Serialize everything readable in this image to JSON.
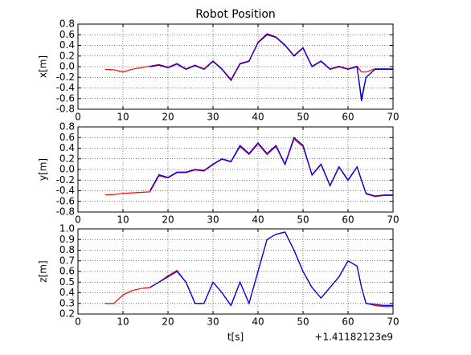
{
  "chart_data": [
    {
      "type": "line",
      "title": "Robot Position",
      "y_label": "x[m]",
      "x": [
        6,
        8,
        10,
        12,
        14,
        16,
        18,
        20,
        22,
        24,
        26,
        28,
        30,
        32,
        34,
        36,
        38,
        40,
        42,
        44,
        46,
        48,
        50,
        52,
        54,
        56,
        58,
        60,
        62,
        63,
        64,
        66,
        68,
        70
      ],
      "series": [
        {
          "color": "#000000",
          "values": [
            null,
            null,
            null,
            null,
            null,
            0.0,
            0.03,
            -0.02,
            0.05,
            -0.05,
            0.02,
            -0.05,
            0.1,
            -0.05,
            -0.25,
            0.05,
            0.1,
            0.45,
            0.6,
            0.55,
            0.4,
            0.2,
            0.35,
            0.0,
            0.1,
            -0.05,
            0.0,
            -0.05,
            0.0,
            -0.6,
            -0.2,
            -0.05,
            -0.05,
            -0.05
          ]
        },
        {
          "color": "#ff0000",
          "values": [
            -0.05,
            -0.06,
            -0.1,
            -0.05,
            -0.02,
            0.01,
            0.04,
            -0.01,
            0.06,
            -0.04,
            0.03,
            -0.04,
            0.11,
            -0.04,
            -0.24,
            0.06,
            0.11,
            0.46,
            0.62,
            0.56,
            0.41,
            0.21,
            0.36,
            0.01,
            0.11,
            -0.04,
            0.01,
            -0.04,
            0.01,
            -0.1,
            -0.1,
            -0.04,
            -0.04,
            -0.04
          ]
        },
        {
          "color": "#0000ff",
          "values": [
            null,
            null,
            null,
            null,
            null,
            0.0,
            0.03,
            -0.02,
            0.05,
            -0.05,
            0.02,
            -0.05,
            0.1,
            -0.05,
            -0.26,
            0.05,
            0.1,
            0.45,
            0.61,
            0.55,
            0.4,
            0.2,
            0.35,
            0.0,
            0.1,
            -0.05,
            0.0,
            -0.05,
            0.0,
            -0.65,
            -0.2,
            -0.05,
            -0.05,
            -0.05
          ]
        }
      ],
      "xlim": [
        0,
        70
      ],
      "xticks": [
        0,
        10,
        20,
        30,
        40,
        50,
        60,
        70
      ],
      "ylim": [
        -0.8,
        0.8
      ],
      "yticks": [
        0.8,
        0.6,
        0.4,
        0.2,
        {
          "value": 0,
          "label": "0.0"
        },
        -0.2,
        -0.4,
        -0.6,
        -0.8
      ],
      "grid": true
    },
    {
      "type": "line",
      "y_label": "y[m]",
      "x": [
        6,
        8,
        10,
        12,
        14,
        16,
        18,
        20,
        22,
        24,
        26,
        28,
        30,
        32,
        34,
        36,
        38,
        40,
        42,
        44,
        46,
        48,
        50,
        52,
        54,
        56,
        58,
        60,
        62,
        63,
        64,
        66,
        68,
        70
      ],
      "series": [
        {
          "color": "#000000",
          "values": [
            null,
            null,
            null,
            null,
            null,
            -0.4,
            -0.1,
            -0.15,
            -0.05,
            -0.05,
            0.0,
            -0.02,
            0.1,
            0.2,
            0.15,
            0.45,
            0.3,
            0.5,
            0.3,
            0.45,
            0.1,
            0.6,
            0.45,
            -0.1,
            0.1,
            -0.3,
            0.05,
            -0.2,
            0.05,
            -0.2,
            -0.45,
            -0.5,
            -0.48,
            -0.48
          ]
        },
        {
          "color": "#ff0000",
          "values": [
            -0.48,
            -0.47,
            -0.45,
            -0.44,
            -0.43,
            -0.42,
            -0.12,
            -0.16,
            -0.06,
            -0.06,
            -0.01,
            -0.03,
            0.09,
            0.19,
            0.14,
            0.43,
            0.28,
            0.48,
            0.28,
            0.43,
            0.09,
            0.57,
            0.43,
            -0.11,
            0.09,
            -0.31,
            0.04,
            -0.21,
            0.04,
            -0.21,
            -0.46,
            -0.51,
            -0.49,
            -0.49
          ]
        },
        {
          "color": "#0000ff",
          "values": [
            null,
            null,
            null,
            null,
            null,
            -0.4,
            -0.1,
            -0.15,
            -0.05,
            -0.05,
            0.0,
            -0.02,
            0.1,
            0.2,
            0.15,
            0.45,
            0.3,
            0.5,
            0.3,
            0.45,
            0.1,
            0.6,
            0.45,
            -0.1,
            0.1,
            -0.3,
            0.05,
            -0.2,
            0.05,
            -0.2,
            -0.45,
            -0.5,
            -0.48,
            -0.48
          ]
        }
      ],
      "xlim": [
        0,
        70
      ],
      "xticks": [
        0,
        10,
        20,
        30,
        40,
        50,
        60,
        70
      ],
      "ylim": [
        -0.8,
        0.8
      ],
      "yticks": [
        0.8,
        0.6,
        0.4,
        0.2,
        {
          "value": 0,
          "label": "0.0"
        },
        -0.2,
        -0.4,
        -0.6,
        -0.8
      ],
      "grid": true
    },
    {
      "type": "line",
      "y_label": "z[m]",
      "x_label": "t[s]",
      "x_offset_label": "+1.41182123e9",
      "x": [
        6,
        8,
        10,
        12,
        14,
        16,
        18,
        20,
        22,
        24,
        26,
        28,
        30,
        32,
        34,
        36,
        38,
        40,
        42,
        44,
        46,
        48,
        50,
        52,
        54,
        56,
        58,
        60,
        62,
        63,
        64,
        66,
        68,
        70
      ],
      "series": [
        {
          "color": "#000000",
          "values": [
            null,
            null,
            null,
            null,
            null,
            0.45,
            0.5,
            0.55,
            0.6,
            0.5,
            0.3,
            0.3,
            0.5,
            0.4,
            0.28,
            0.5,
            0.3,
            0.6,
            0.9,
            0.95,
            0.97,
            0.8,
            0.6,
            0.45,
            0.35,
            0.45,
            0.55,
            0.7,
            0.65,
            0.45,
            0.3,
            0.29,
            0.28,
            0.28
          ]
        },
        {
          "color": "#ff0000",
          "values": [
            0.3,
            0.3,
            0.38,
            0.42,
            0.44,
            0.45,
            0.5,
            0.56,
            0.61,
            0.5,
            0.3,
            0.3,
            0.5,
            0.4,
            0.28,
            0.5,
            0.3,
            0.6,
            0.9,
            0.95,
            0.97,
            0.8,
            0.6,
            0.45,
            0.35,
            0.45,
            0.55,
            0.7,
            0.65,
            0.45,
            0.3,
            0.28,
            0.27,
            0.27
          ]
        },
        {
          "color": "#0000ff",
          "values": [
            null,
            null,
            null,
            null,
            null,
            0.45,
            0.5,
            0.55,
            0.6,
            0.5,
            0.3,
            0.3,
            0.5,
            0.4,
            0.28,
            0.5,
            0.3,
            0.6,
            0.9,
            0.95,
            0.97,
            0.8,
            0.6,
            0.45,
            0.35,
            0.45,
            0.55,
            0.7,
            0.65,
            0.45,
            0.3,
            0.29,
            0.28,
            0.28
          ]
        }
      ],
      "xlim": [
        0,
        70
      ],
      "xticks": [
        0,
        10,
        20,
        30,
        40,
        50,
        60,
        70
      ],
      "ylim": [
        0.2,
        1.0
      ],
      "yticks": [
        {
          "value": 1,
          "label": "1.0"
        },
        0.9,
        0.8,
        0.7,
        0.6,
        0.5,
        0.4,
        0.3,
        0.2
      ],
      "grid": true
    }
  ]
}
